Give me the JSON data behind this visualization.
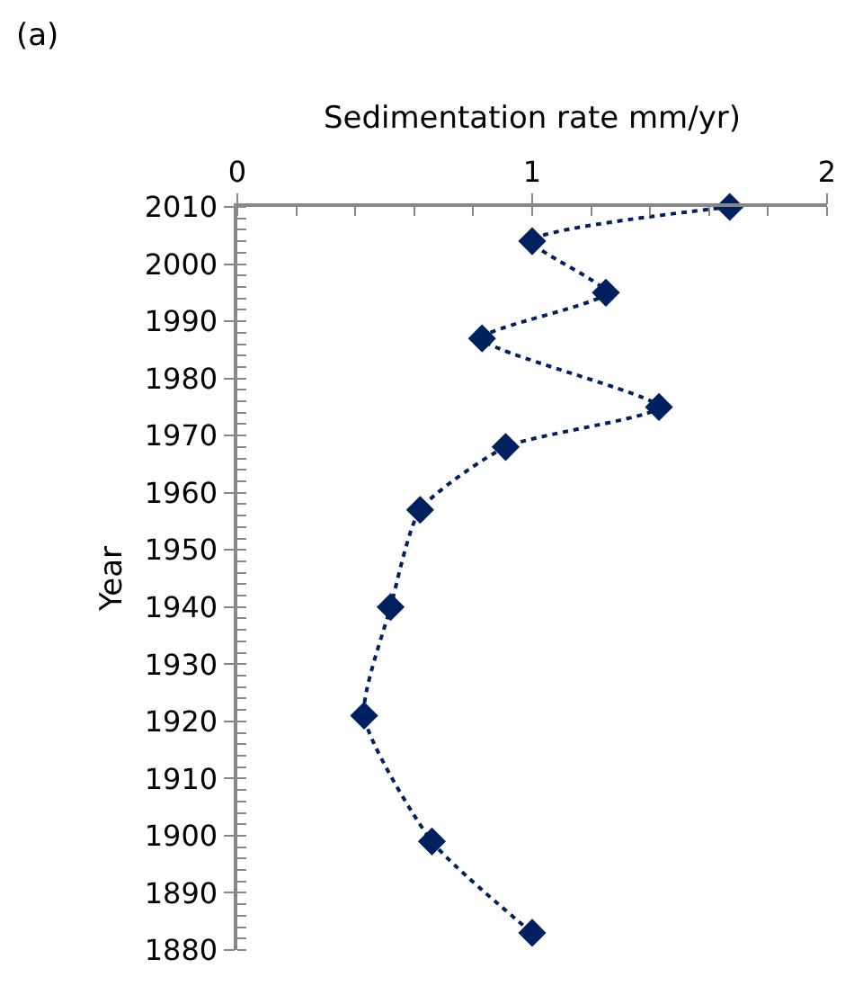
{
  "chart_data": {
    "type": "line",
    "xlabel": "Sedimentation rate mm/yr)",
    "ylabel": "Year",
    "annotations": [
      "(a)"
    ],
    "series": [
      {
        "color": "#002060",
        "x": [
          1.67,
          1.0,
          1.25,
          0.83,
          1.43,
          0.91,
          0.62,
          0.52,
          0.43,
          0.66,
          1.0
        ],
        "values": [
          2010,
          2004,
          1995,
          1987,
          1975,
          1968,
          1957,
          1940,
          1921,
          1899,
          1883
        ]
      }
    ],
    "xlim": [
      0,
      2
    ],
    "xticks": [
      0,
      1,
      2
    ],
    "ylim": [
      1880,
      2010
    ],
    "yticks": [
      1880,
      1890,
      1900,
      1910,
      1920,
      1930,
      1940,
      1950,
      1960,
      1970,
      1980,
      1990,
      2000,
      2010
    ],
    "marker": "diamond",
    "line_style": "dotted"
  }
}
